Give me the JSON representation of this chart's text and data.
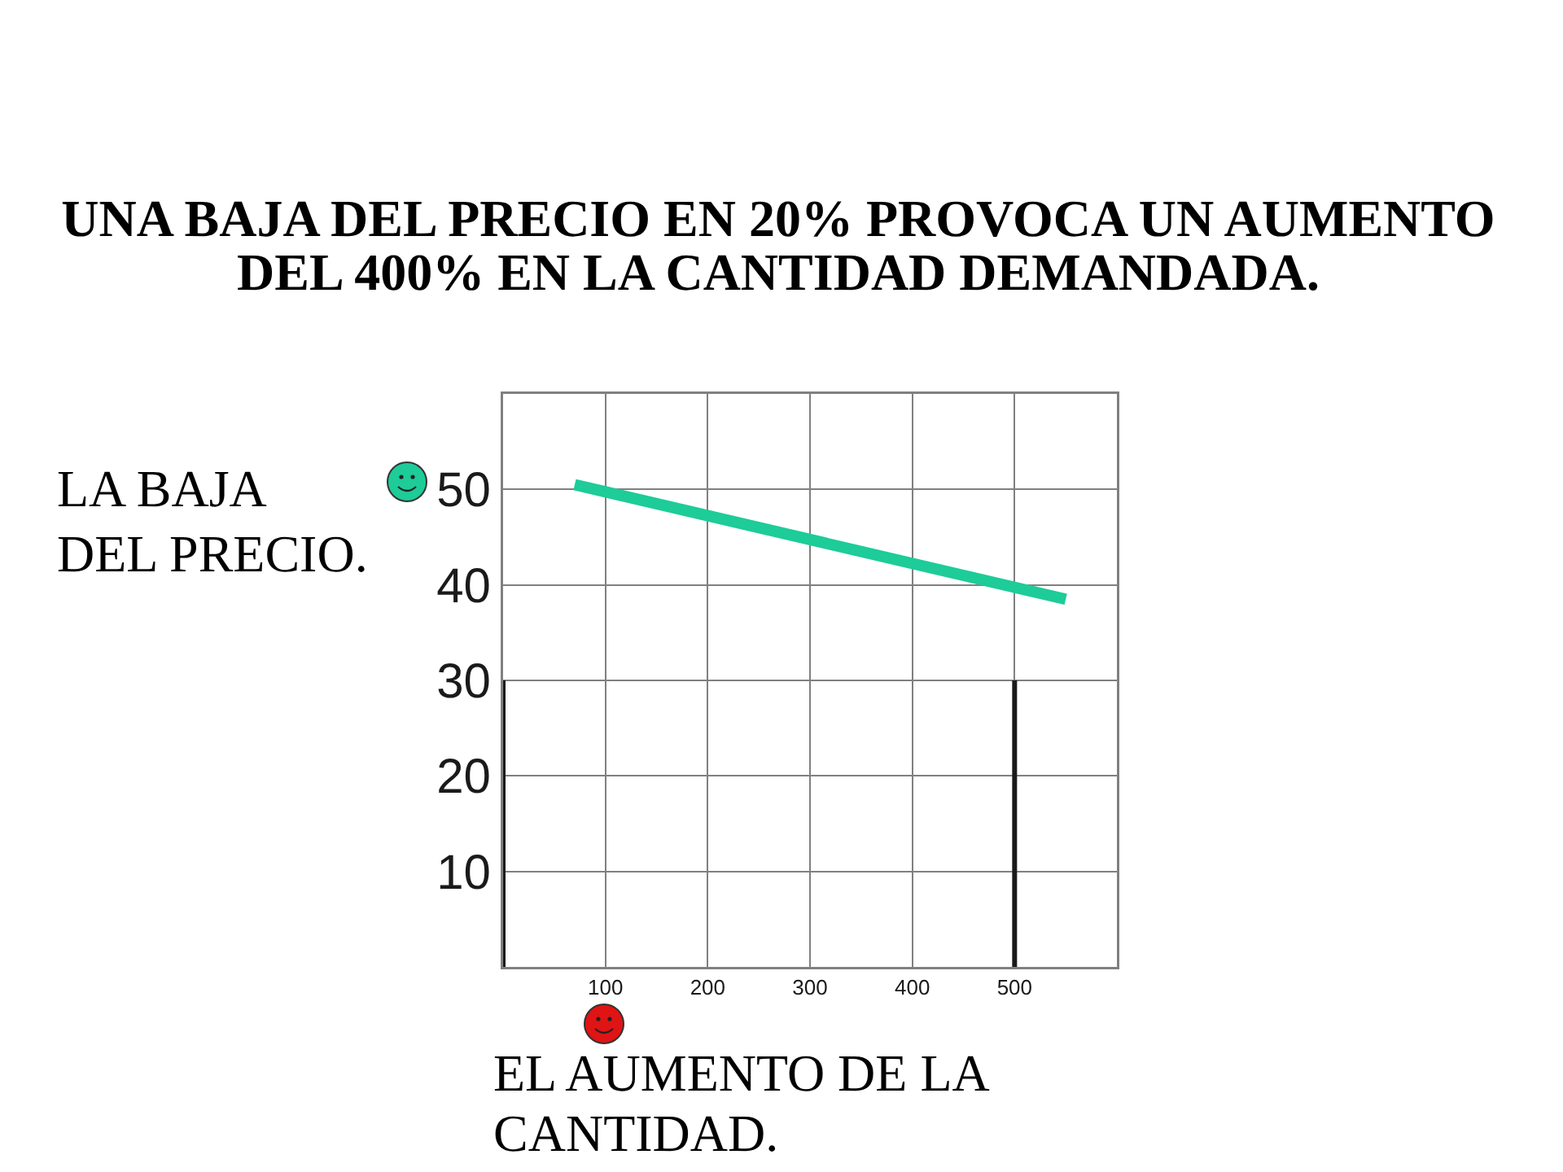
{
  "chart_data": {
    "type": "line",
    "title": "UNA BAJA DEL PRECIO EN 20% PROVOCA UN AUMENTO DEL 400% EN LA CANTIDAD DEMANDADA.",
    "xlabel": "EL AUMENTO DE LA CANTIDAD.",
    "ylabel": "LA BAJA DEL PRECIO.",
    "series": [
      {
        "x": [
          70,
          550
        ],
        "values": [
          50.5,
          38.5
        ],
        "color": "#1dcc98"
      },
      {
        "type": "line",
        "x": [
          0,
          0
        ],
        "values": [
          0,
          30
        ],
        "color": "#1a1a1a"
      },
      {
        "type": "line",
        "x": [
          500,
          500
        ],
        "values": [
          0,
          30
        ],
        "color": "#1a1a1a"
      }
    ],
    "xlim": [
      0,
      600
    ],
    "ylim": [
      0,
      60
    ],
    "xticks": [
      100,
      200,
      300,
      400,
      500
    ],
    "yticks": [
      10,
      20,
      30,
      40,
      50
    ],
    "grid": true
  }
}
